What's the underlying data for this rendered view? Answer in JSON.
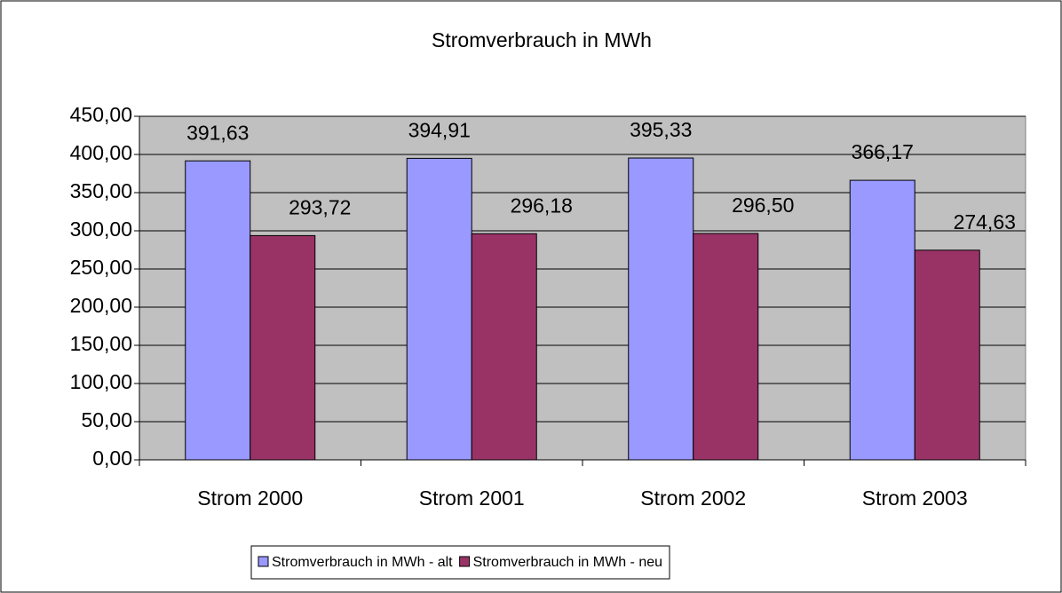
{
  "chart_data": {
    "type": "bar",
    "title": "Stromverbrauch in MWh",
    "categories": [
      "Strom 2000",
      "Strom 2001",
      "Strom 2002",
      "Strom 2003"
    ],
    "series": [
      {
        "name": "Stromverbrauch in MWh - alt",
        "color": "#9999ff",
        "values": [
          391.63,
          394.91,
          395.33,
          366.17
        ],
        "value_labels": [
          "391,63",
          "394,91",
          "395,33",
          "366,17"
        ]
      },
      {
        "name": "Stromverbrauch in MWh - neu",
        "color": "#993366",
        "values": [
          293.72,
          296.18,
          296.5,
          274.63
        ],
        "value_labels": [
          "293,72",
          "296,18",
          "296,50",
          "274,63"
        ]
      }
    ],
    "ylim": [
      0,
      450
    ],
    "yticks": [
      {
        "value": 0,
        "label": "0,00"
      },
      {
        "value": 50,
        "label": "50,00"
      },
      {
        "value": 100,
        "label": "100,00"
      },
      {
        "value": 150,
        "label": "150,00"
      },
      {
        "value": 200,
        "label": "200,00"
      },
      {
        "value": 250,
        "label": "250,00"
      },
      {
        "value": 300,
        "label": "300,00"
      },
      {
        "value": 350,
        "label": "350,00"
      },
      {
        "value": 400,
        "label": "400,00"
      },
      {
        "value": 450,
        "label": "450,00"
      }
    ],
    "grid": true,
    "plot_background": "#c0c0c0",
    "legend": "bottom"
  }
}
